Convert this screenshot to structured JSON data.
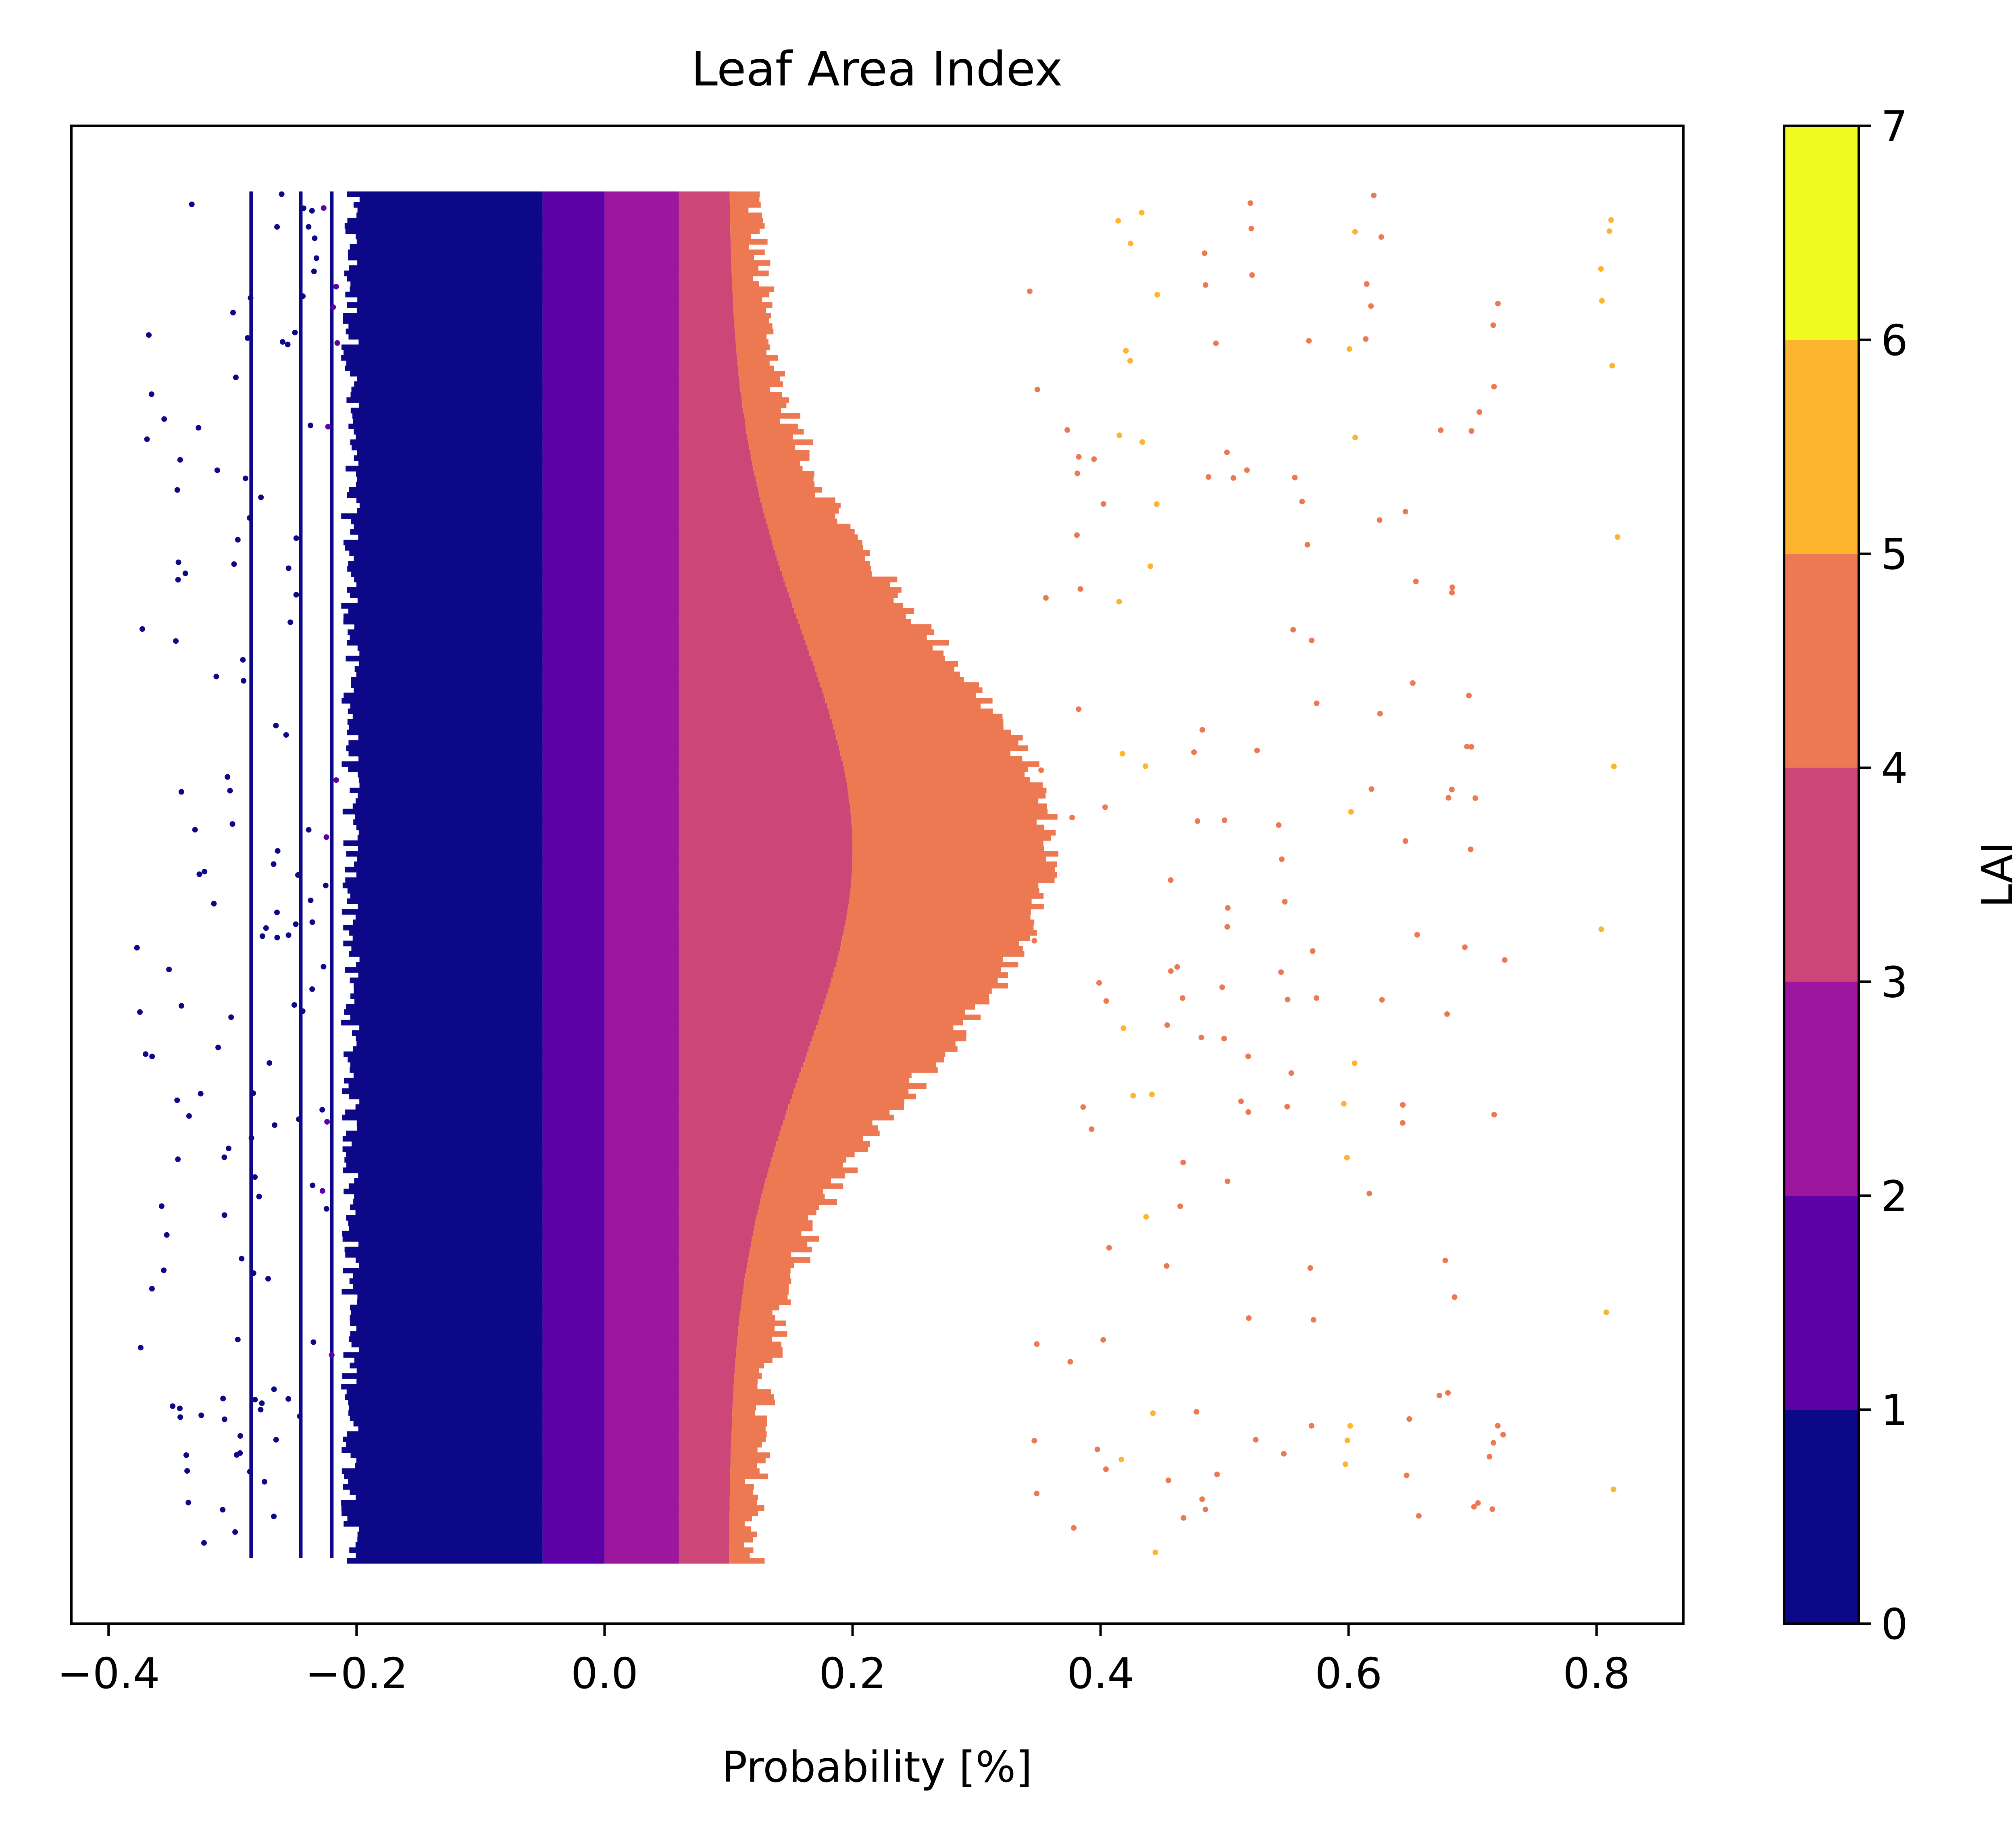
{
  "chart_data": {
    "type": "scatter",
    "title": "Leaf Area Index",
    "xlabel": "Probability [%]",
    "ylabel": "",
    "xlim": [
      -0.43,
      0.87
    ],
    "y_ticks_shown": false,
    "x_ticks": [
      -0.4,
      -0.2,
      0.0,
      0.2,
      0.4,
      0.6,
      0.8
    ],
    "x_tick_labels": [
      "−0.4",
      "−0.2",
      "0.0",
      "0.2",
      "0.4",
      "0.6",
      "0.8"
    ],
    "colorbar": {
      "label": "LAI",
      "colormap": "plasma",
      "range": [
        0,
        7
      ],
      "ticks": [
        0,
        1,
        2,
        3,
        4,
        5,
        6,
        7
      ],
      "tick_labels": [
        "0",
        "1",
        "2",
        "3",
        "4",
        "5",
        "6",
        "7"
      ],
      "bins": [
        {
          "from": 0,
          "to": 1,
          "color": "#0d0887"
        },
        {
          "from": 1,
          "to": 2,
          "color": "#5c01a6"
        },
        {
          "from": 2,
          "to": 3,
          "color": "#9c179e"
        },
        {
          "from": 3,
          "to": 4,
          "color": "#cc4778"
        },
        {
          "from": 4,
          "to": 5,
          "color": "#ed7953"
        },
        {
          "from": 5,
          "to": 6,
          "color": "#fdb42f"
        },
        {
          "from": 6,
          "to": 7,
          "color": "#f0f921"
        }
      ]
    },
    "series": [
      {
        "x": [
          -0.37,
          -0.35,
          -0.34,
          -0.33,
          -0.31,
          -0.3,
          -0.29,
          -0.28,
          -0.27,
          -0.26,
          -0.25,
          -0.24,
          -0.23,
          -0.22
        ],
        "lai": [
          0.5,
          0.5,
          0.5,
          0.5,
          0.5,
          0.5,
          0.5,
          0.5,
          0.5,
          0.6,
          0.7,
          0.8,
          0.9,
          1.0
        ]
      },
      {
        "x": [
          0.35,
          0.38,
          0.4,
          0.42,
          0.44,
          0.46,
          0.48,
          0.5,
          0.52,
          0.55,
          0.57,
          0.6,
          0.62,
          0.65,
          0.68,
          0.7,
          0.72,
          0.81
        ],
        "lai": [
          4.5,
          4.5,
          4.6,
          5.2,
          5.3,
          4.5,
          4.6,
          4.5,
          4.7,
          4.6,
          4.8,
          5.1,
          4.6,
          4.6,
          4.5,
          4.5,
          4.5,
          5.0
        ]
      }
    ]
  }
}
